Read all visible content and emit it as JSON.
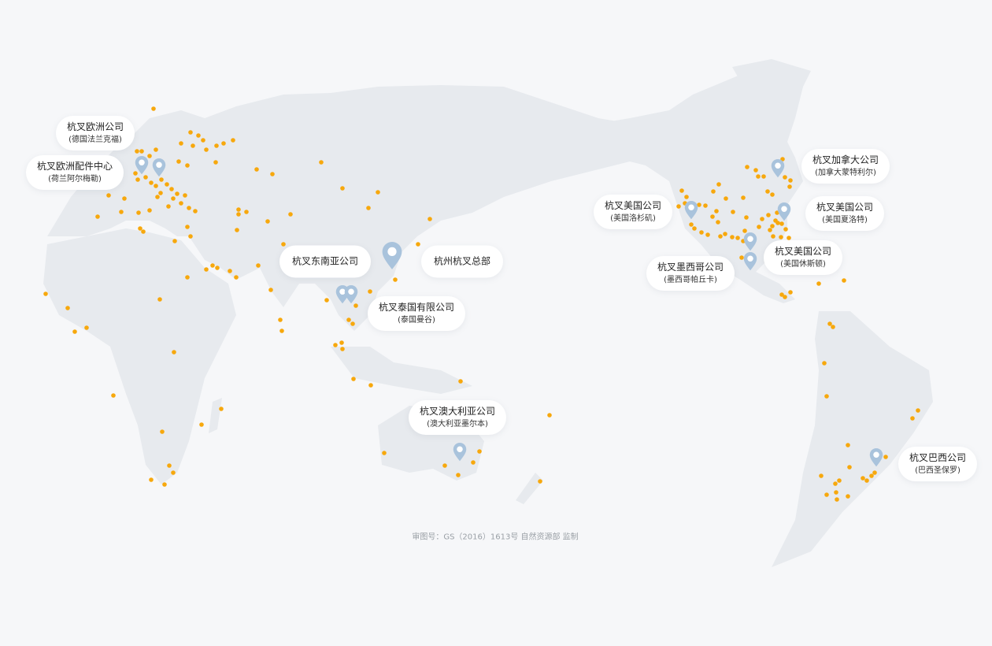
{
  "colors": {
    "background": "#f6f7f9",
    "land": "#e7eaee",
    "dealer_dot": "#f7a80d",
    "pin": "#a9c3dc"
  },
  "offices": [
    {
      "name": "杭叉欧洲公司",
      "city": "(德国法兰克福)"
    },
    {
      "name": "杭叉欧洲配件中心",
      "city": "(荷兰阿尔梅勒)"
    },
    {
      "name": "杭叉东南亚公司"
    },
    {
      "name": "杭州杭叉总部"
    },
    {
      "name": "杭叉泰国有限公司",
      "city": "(泰国曼谷)"
    },
    {
      "name": "杭叉澳大利亚公司",
      "city": "(澳大利亚墨尔本)"
    },
    {
      "name": "杭叉美国公司",
      "city": "(美国洛杉矶)"
    },
    {
      "name": "杭叉加拿大公司",
      "city": "(加拿大蒙特利尔)"
    },
    {
      "name": "杭叉美国公司",
      "city": "(美国夏洛特)"
    },
    {
      "name": "杭叉美国公司",
      "city": "(美国休斯顿)"
    },
    {
      "name": "杭叉墨西哥公司",
      "city": "(墨西哥帕丘卡)"
    },
    {
      "name": "杭叉巴西公司",
      "city": "(巴西圣保罗)"
    }
  ],
  "footer": "审图号：GS（2016）1613号 自然资源部 监制"
}
